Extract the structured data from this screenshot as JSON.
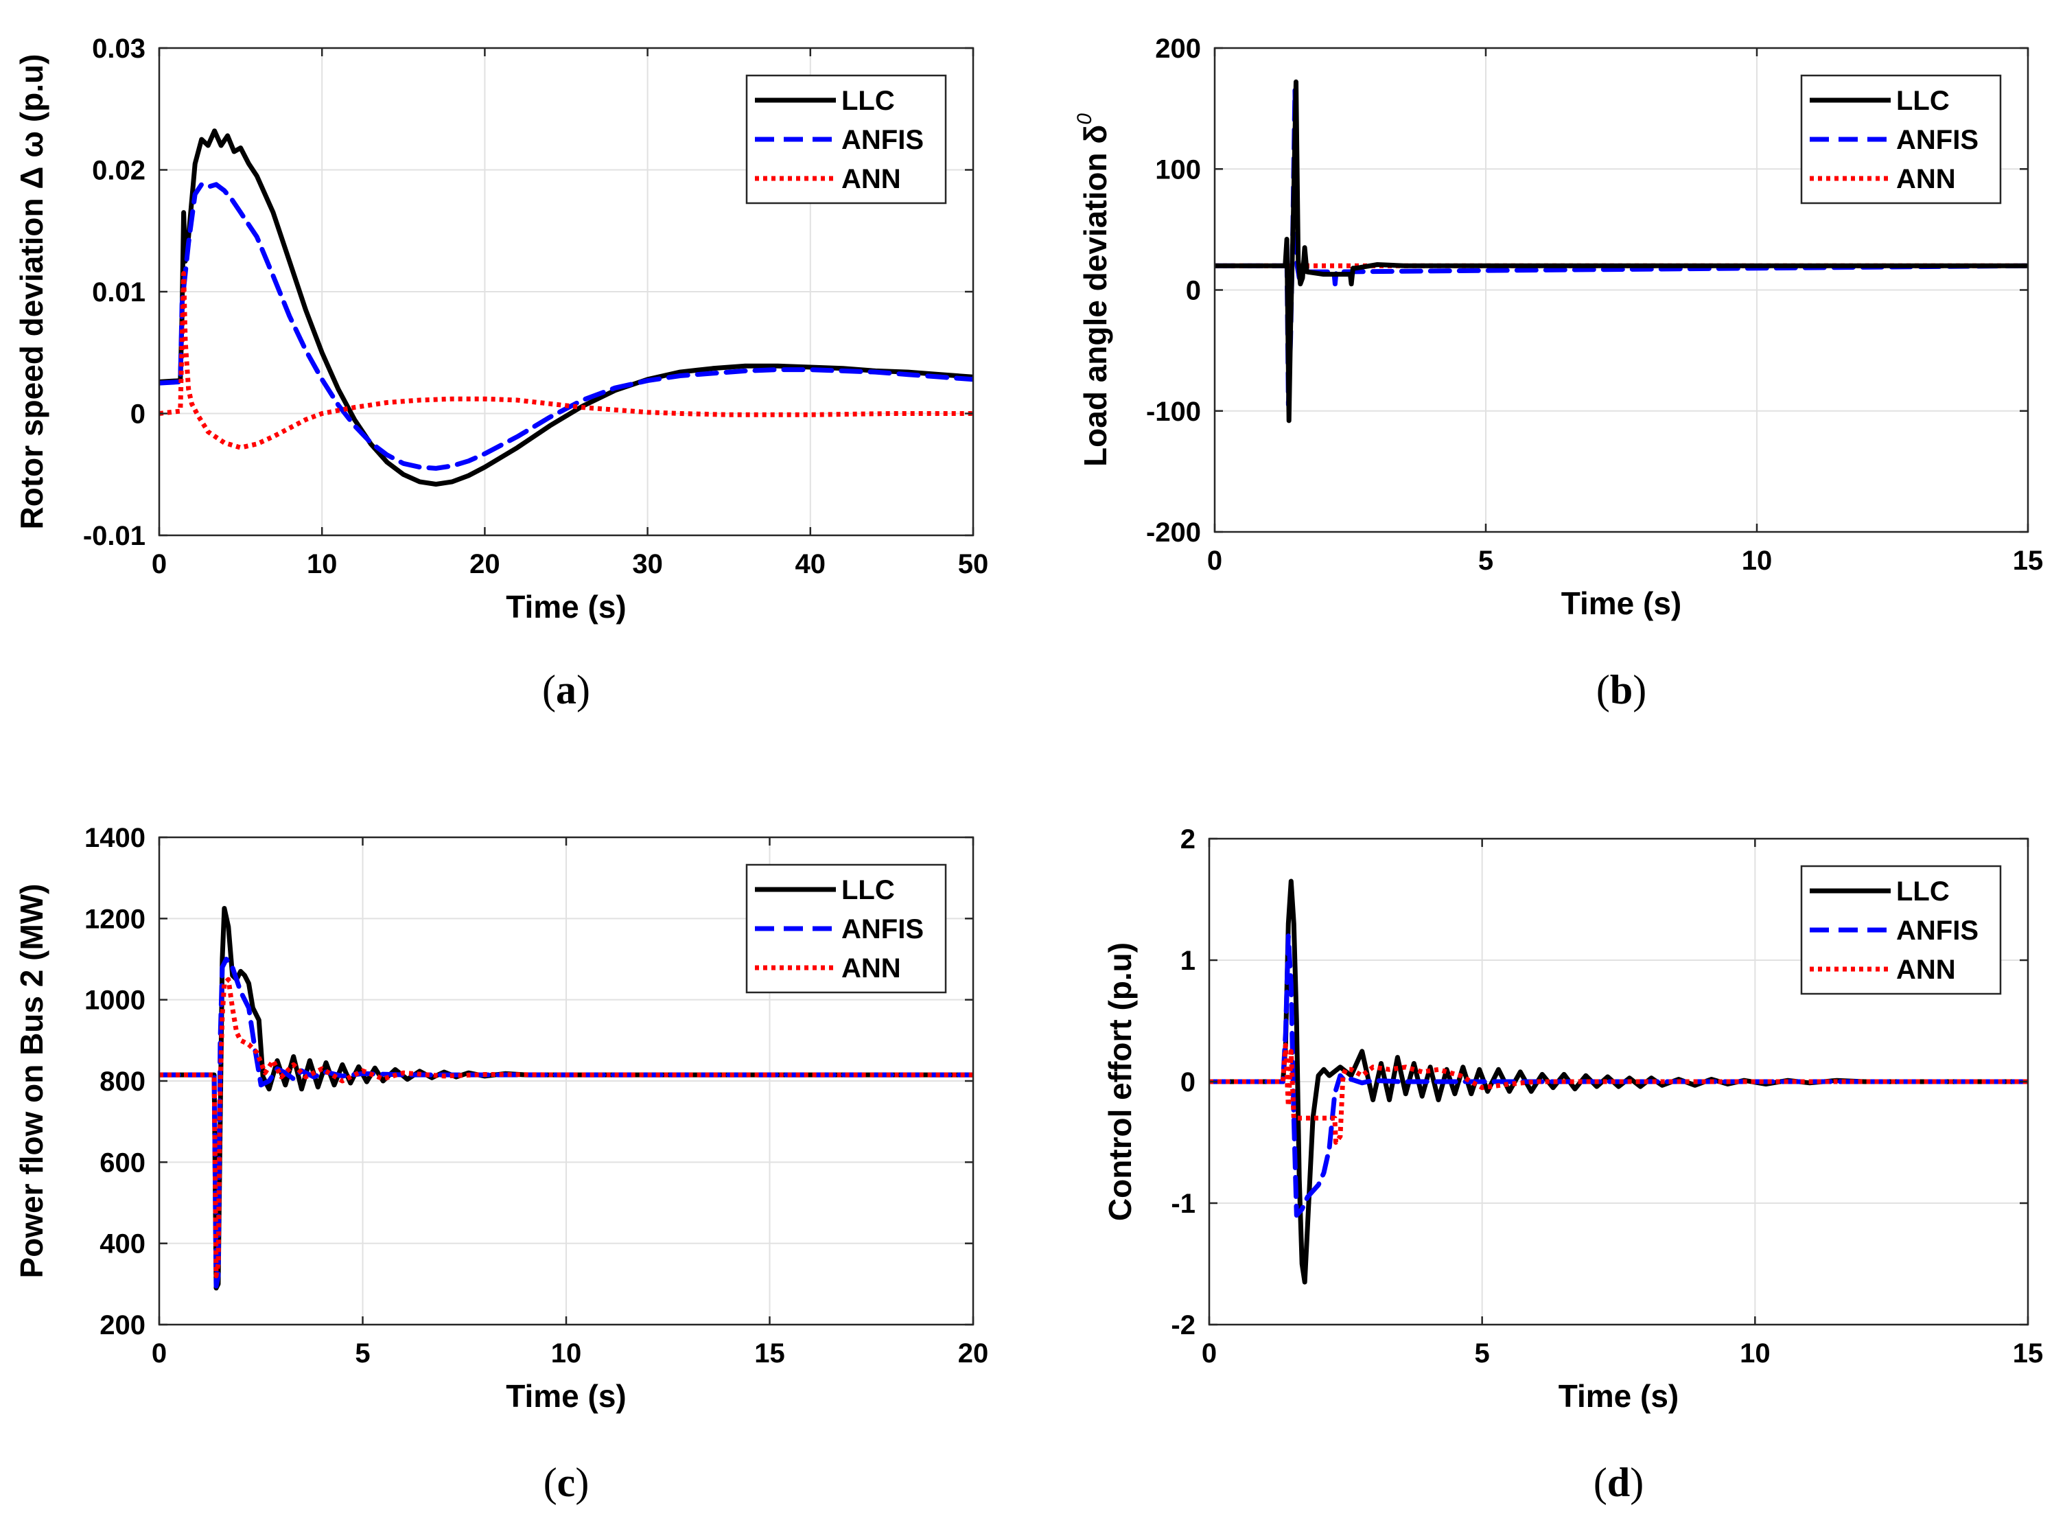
{
  "series_styles": [
    {
      "name": "LLC",
      "color": "#000000",
      "dash": "solid"
    },
    {
      "name": "ANFIS",
      "color": "#0000ff",
      "dash": "dashed"
    },
    {
      "name": "ANN",
      "color": "#ff0000",
      "dash": "dotted"
    }
  ],
  "chart_data": [
    {
      "id": "a",
      "type": "line",
      "caption": "a",
      "xlabel": "Time (s)",
      "ylabel": "Rotor speed deviation Δ ω (p.u)",
      "xlim": [
        0,
        50
      ],
      "ylim": [
        -0.01,
        0.03
      ],
      "xticks": [
        0,
        10,
        20,
        30,
        40,
        50
      ],
      "xtick_labels": [
        "0",
        "10",
        "20",
        "30",
        "40",
        "50"
      ],
      "yticks": [
        -0.01,
        0,
        0.01,
        0.02,
        0.03
      ],
      "ytick_labels": [
        "-0.01",
        "0",
        "0.01",
        "0.02",
        "0.03"
      ],
      "legend": {
        "position": "top-right",
        "entries": [
          "LLC",
          "ANFIS",
          "ANN"
        ]
      },
      "series": [
        {
          "name": "LLC",
          "x": [
            0,
            1.3,
            1.4,
            1.5,
            1.6,
            1.8,
            2.2,
            2.6,
            3.0,
            3.4,
            3.8,
            4.2,
            4.6,
            5.0,
            5.5,
            6,
            7,
            8,
            9,
            10,
            11,
            12,
            13,
            14,
            15,
            16,
            17,
            18,
            19,
            20,
            22,
            24,
            26,
            28,
            30,
            32,
            34,
            36,
            38,
            40,
            42,
            44,
            46,
            48,
            50
          ],
          "y": [
            0.0026,
            0.0027,
            0.008,
            0.0165,
            0.0125,
            0.0145,
            0.0205,
            0.0225,
            0.022,
            0.0232,
            0.022,
            0.0228,
            0.0215,
            0.0218,
            0.0205,
            0.0195,
            0.0165,
            0.0125,
            0.0085,
            0.005,
            0.002,
            -0.0005,
            -0.0025,
            -0.004,
            -0.005,
            -0.0056,
            -0.0058,
            -0.0056,
            -0.0051,
            -0.0044,
            -0.0028,
            -0.001,
            0.0006,
            0.0019,
            0.0028,
            0.0034,
            0.0037,
            0.0039,
            0.0039,
            0.0038,
            0.0037,
            0.0035,
            0.0034,
            0.0032,
            0.003
          ]
        },
        {
          "name": "ANFIS",
          "x": [
            0,
            1.3,
            1.4,
            1.6,
            1.8,
            2.2,
            2.6,
            3.0,
            3.5,
            4.0,
            4.5,
            5.0,
            6,
            7,
            8,
            9,
            10,
            11,
            12,
            13,
            14,
            15,
            16,
            17,
            18,
            19,
            20,
            22,
            24,
            26,
            28,
            30,
            32,
            34,
            36,
            38,
            40,
            42,
            44,
            46,
            48,
            50
          ],
          "y": [
            0.0025,
            0.0026,
            0.009,
            0.0115,
            0.014,
            0.018,
            0.0188,
            0.0186,
            0.0188,
            0.0183,
            0.0175,
            0.0165,
            0.0145,
            0.0113,
            0.008,
            0.0052,
            0.0028,
            0.0007,
            -0.001,
            -0.0024,
            -0.0034,
            -0.0041,
            -0.0044,
            -0.0045,
            -0.0043,
            -0.0039,
            -0.0033,
            -0.0019,
            -0.0003,
            0.0011,
            0.0021,
            0.0027,
            0.0031,
            0.0033,
            0.0035,
            0.0036,
            0.0036,
            0.0035,
            0.0034,
            0.0032,
            0.003,
            0.0028
          ]
        },
        {
          "name": "ANN",
          "x": [
            0,
            1.3,
            1.5,
            1.6,
            1.8,
            2.0,
            2.4,
            3.0,
            4.0,
            5.0,
            6,
            7,
            8,
            9,
            10,
            12,
            14,
            16,
            18,
            20,
            22,
            24,
            26,
            28,
            30,
            32,
            35,
            40,
            45,
            50
          ],
          "y": [
            0,
            0.0002,
            0.0115,
            0.006,
            0.002,
            0.0008,
            -0.0002,
            -0.0015,
            -0.0024,
            -0.0028,
            -0.0025,
            -0.0019,
            -0.0012,
            -0.0005,
            0,
            0.0005,
            0.0009,
            0.0011,
            0.0012,
            0.0012,
            0.0011,
            0.0008,
            0.0005,
            0.0003,
            0.0001,
            0,
            -0.0001,
            -0.0001,
            0,
            0
          ]
        }
      ]
    },
    {
      "id": "b",
      "type": "line",
      "caption": "b",
      "xlabel": "Time (s)",
      "ylabel": "Load angle deviation δ",
      "ylabel_superscript": "0",
      "xlim": [
        0,
        15
      ],
      "ylim": [
        -200,
        200
      ],
      "xticks": [
        0,
        5,
        10,
        15
      ],
      "xtick_labels": [
        "0",
        "5",
        "10",
        "15"
      ],
      "yticks": [
        -200,
        -100,
        0,
        100,
        200
      ],
      "ytick_labels": [
        "-200",
        "-100",
        "0",
        "100",
        "200"
      ],
      "legend": {
        "position": "top-right",
        "entries": [
          "LLC",
          "ANFIS",
          "ANN"
        ]
      },
      "series": [
        {
          "name": "ANN",
          "x": [
            0,
            15
          ],
          "y": [
            20,
            20
          ]
        },
        {
          "name": "ANFIS",
          "x": [
            0,
            1.3,
            1.33,
            1.36,
            1.4,
            1.44,
            1.48,
            1.52,
            1.56,
            1.6,
            2.2,
            2.22,
            2.24,
            2.3,
            15
          ],
          "y": [
            20,
            20,
            30,
            -95,
            -40,
            50,
            165,
            20,
            10,
            15,
            15,
            5,
            15,
            15,
            20
          ]
        },
        {
          "name": "LLC",
          "x": [
            0,
            1.3,
            1.33,
            1.37,
            1.4,
            1.45,
            1.5,
            1.54,
            1.58,
            1.62,
            1.66,
            1.7,
            2.0,
            2.5,
            2.52,
            2.55,
            2.6,
            3.0,
            3.5,
            15
          ],
          "y": [
            20,
            20,
            42,
            -108,
            -30,
            60,
            172,
            25,
            5,
            10,
            35,
            15,
            13,
            13,
            5,
            18,
            18,
            21,
            20,
            20
          ]
        }
      ]
    },
    {
      "id": "c",
      "type": "line",
      "caption": "c",
      "xlabel": "Time (s)",
      "ylabel": "Power flow on Bus 2 (MW)",
      "xlim": [
        0,
        20
      ],
      "ylim": [
        200,
        1400
      ],
      "xticks": [
        0,
        5,
        10,
        15,
        20
      ],
      "xtick_labels": [
        "0",
        "5",
        "10",
        "15",
        "20"
      ],
      "yticks": [
        200,
        400,
        600,
        800,
        1000,
        1200,
        1400
      ],
      "ytick_labels": [
        "200",
        "400",
        "600",
        "800",
        "1000",
        "1200",
        "1400"
      ],
      "legend": {
        "position": "top-right",
        "entries": [
          "LLC",
          "ANFIS",
          "ANN"
        ]
      },
      "series": [
        {
          "name": "LLC",
          "x": [
            0,
            1.35,
            1.4,
            1.45,
            1.5,
            1.55,
            1.6,
            1.7,
            1.8,
            1.9,
            2.0,
            2.1,
            2.2,
            2.3,
            2.45,
            2.55,
            2.7,
            2.9,
            3.1,
            3.3,
            3.5,
            3.7,
            3.9,
            4.1,
            4.3,
            4.5,
            4.7,
            4.9,
            5.1,
            5.3,
            5.5,
            5.8,
            6.1,
            6.4,
            6.7,
            7.0,
            7.3,
            7.6,
            8.0,
            8.5,
            9,
            10,
            12,
            15,
            20
          ],
          "y": [
            815,
            815,
            290,
            300,
            700,
            1100,
            1225,
            1180,
            1060,
            1050,
            1070,
            1060,
            1040,
            980,
            950,
            810,
            780,
            850,
            790,
            860,
            780,
            850,
            785,
            845,
            790,
            840,
            795,
            835,
            798,
            832,
            800,
            828,
            804,
            824,
            808,
            822,
            810,
            820,
            812,
            818,
            815,
            815,
            815,
            815,
            815
          ]
        },
        {
          "name": "ANFIS",
          "x": [
            0,
            1.35,
            1.4,
            1.45,
            1.5,
            1.55,
            1.65,
            1.8,
            2.0,
            2.2,
            2.35,
            2.5,
            2.7,
            2.9,
            3.1,
            3.3,
            3.5,
            3.8,
            4.1,
            4.5,
            5,
            6,
            8,
            10,
            20
          ],
          "y": [
            815,
            815,
            295,
            320,
            900,
            1080,
            1100,
            1080,
            1020,
            980,
            880,
            790,
            800,
            830,
            820,
            805,
            825,
            810,
            822,
            812,
            818,
            815,
            815,
            815,
            815
          ]
        },
        {
          "name": "ANN",
          "x": [
            0,
            1.35,
            1.4,
            1.45,
            1.5,
            1.55,
            1.6,
            1.7,
            1.8,
            1.9,
            2.0,
            2.2,
            2.4,
            2.6,
            2.8,
            3.0,
            3.3,
            3.6,
            4.0,
            4.5,
            5,
            5.5,
            6,
            7,
            8,
            10,
            20
          ],
          "y": [
            815,
            815,
            320,
            350,
            780,
            960,
            1040,
            1050,
            980,
            920,
            900,
            890,
            870,
            820,
            850,
            810,
            840,
            810,
            830,
            800,
            825,
            805,
            820,
            812,
            816,
            815,
            815
          ]
        }
      ]
    },
    {
      "id": "d",
      "type": "line",
      "caption": "d",
      "xlabel": "Time (s)",
      "ylabel": "Control effort (p.u)",
      "xlim": [
        0,
        15
      ],
      "ylim": [
        -2,
        2
      ],
      "xticks": [
        0,
        5,
        10,
        15
      ],
      "xtick_labels": [
        "0",
        "5",
        "10",
        "15"
      ],
      "yticks": [
        -2,
        -1,
        0,
        1,
        2
      ],
      "ytick_labels": [
        "-2",
        "-1",
        "0",
        "1",
        "2"
      ],
      "legend": {
        "position": "top-right",
        "entries": [
          "LLC",
          "ANFIS",
          "ANN"
        ]
      },
      "series": [
        {
          "name": "LLC",
          "x": [
            0,
            1.35,
            1.4,
            1.45,
            1.5,
            1.55,
            1.6,
            1.65,
            1.7,
            1.75,
            1.8,
            1.9,
            2.0,
            2.1,
            2.2,
            2.4,
            2.6,
            2.8,
            3.0,
            3.15,
            3.3,
            3.45,
            3.6,
            3.75,
            3.9,
            4.05,
            4.2,
            4.35,
            4.5,
            4.65,
            4.8,
            4.95,
            5.1,
            5.3,
            5.5,
            5.7,
            5.9,
            6.1,
            6.3,
            6.5,
            6.7,
            6.9,
            7.1,
            7.3,
            7.5,
            7.7,
            7.9,
            8.1,
            8.3,
            8.6,
            8.9,
            9.2,
            9.5,
            9.8,
            10.2,
            10.6,
            11,
            11.5,
            12,
            13,
            14,
            15
          ],
          "y": [
            0,
            0,
            0.3,
            1.3,
            1.65,
            1.3,
            0.5,
            -0.8,
            -1.5,
            -1.65,
            -1.2,
            -0.3,
            0.05,
            0.1,
            0.05,
            0.12,
            0.05,
            0.25,
            -0.15,
            0.15,
            -0.15,
            0.2,
            -0.1,
            0.15,
            -0.12,
            0.12,
            -0.15,
            0.1,
            -0.1,
            0.12,
            -0.1,
            0.1,
            -0.08,
            0.1,
            -0.08,
            0.08,
            -0.08,
            0.06,
            -0.05,
            0.06,
            -0.06,
            0.05,
            -0.04,
            0.04,
            -0.04,
            0.03,
            -0.04,
            0.03,
            -0.03,
            0.02,
            -0.03,
            0.02,
            -0.02,
            0.01,
            -0.02,
            0.01,
            -0.01,
            0.01,
            0,
            0,
            0,
            0
          ]
        },
        {
          "name": "ANFIS",
          "x": [
            0,
            1.35,
            1.4,
            1.45,
            1.5,
            1.55,
            1.6,
            1.7,
            1.8,
            1.9,
            2.0,
            2.1,
            2.2,
            2.3,
            2.4,
            2.5,
            2.6,
            2.8,
            3.0,
            3.5,
            4,
            5,
            15
          ],
          "y": [
            0,
            0,
            0.4,
            1.2,
            0.8,
            -0.3,
            -1.1,
            -1.05,
            -0.95,
            -0.9,
            -0.85,
            -0.75,
            -0.55,
            -0.1,
            0.05,
            0.0,
            0.02,
            -0.01,
            0.01,
            0,
            0,
            0,
            0
          ]
        },
        {
          "name": "ANN",
          "x": [
            0,
            1.35,
            1.4,
            1.45,
            1.5,
            1.55,
            1.6,
            2.3,
            2.32,
            2.4,
            2.45,
            2.5,
            2.6,
            2.8,
            3.0,
            3.3,
            3.6,
            3.9,
            4.2,
            4.6,
            5.0,
            5.5,
            6,
            7,
            8,
            15
          ],
          "y": [
            0,
            0,
            0.3,
            -0.2,
            0.25,
            -0.3,
            -0.3,
            -0.3,
            -0.5,
            -0.45,
            0.05,
            0.1,
            0.1,
            0.05,
            0.12,
            0.1,
            0.12,
            0.08,
            0.1,
            0.05,
            -0.05,
            -0.02,
            0,
            0,
            0,
            0
          ]
        }
      ]
    }
  ]
}
